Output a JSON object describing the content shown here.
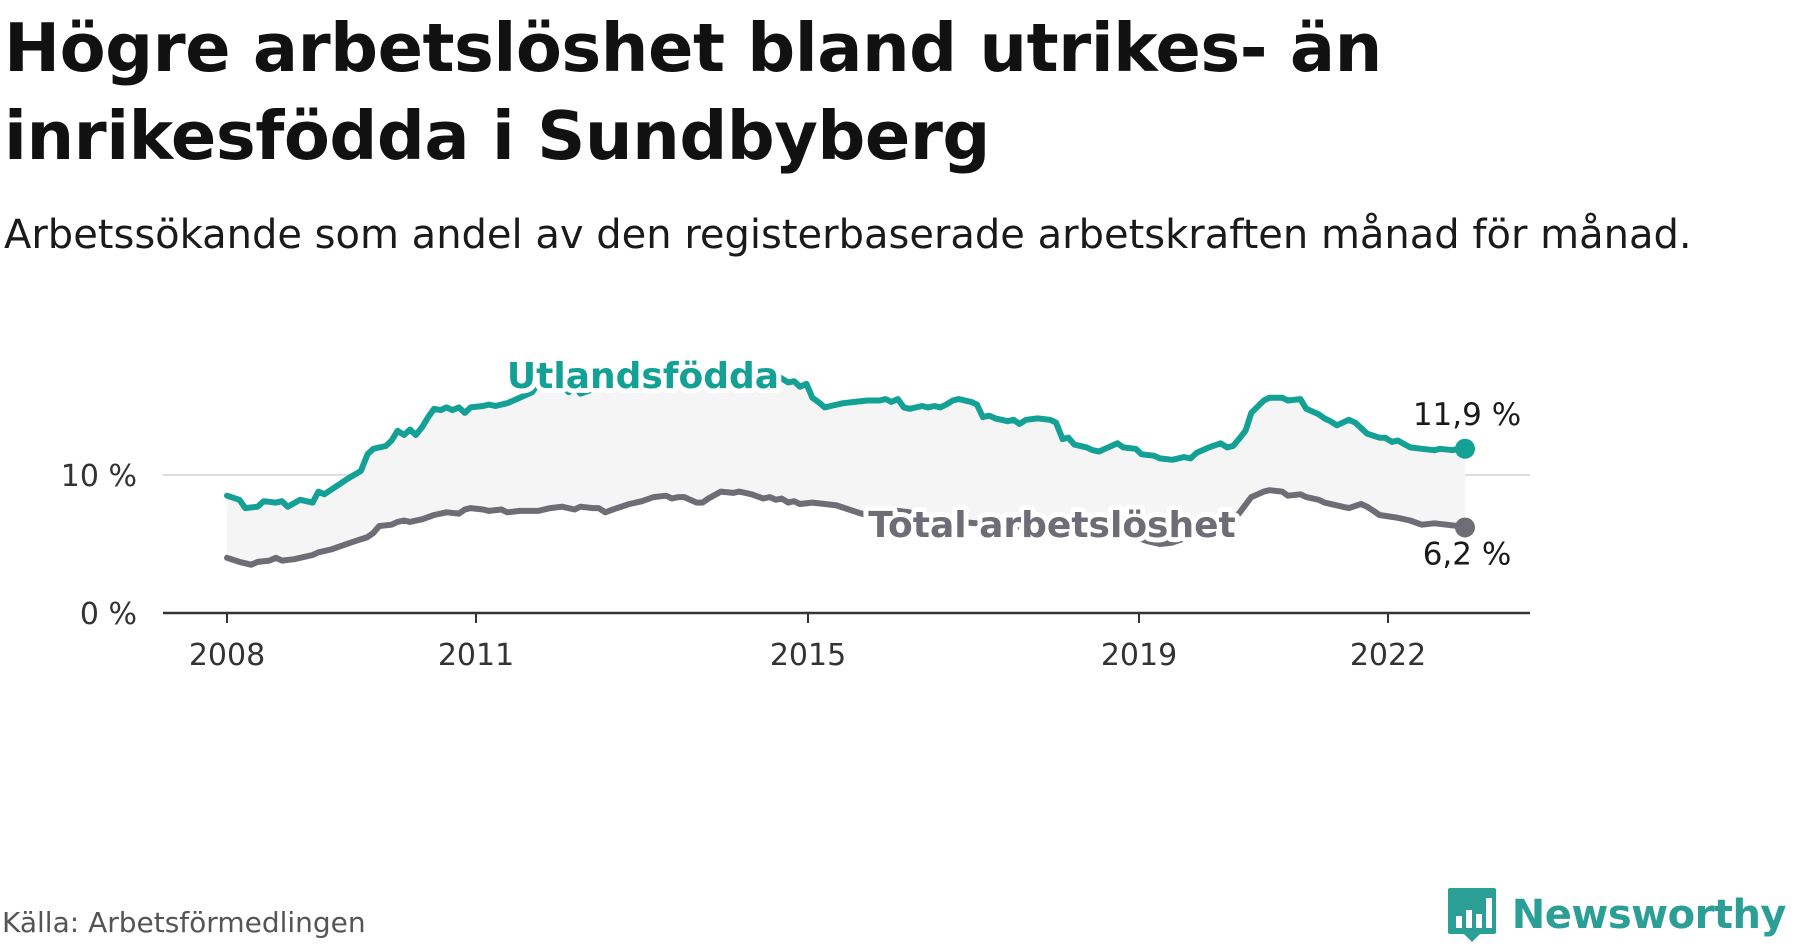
{
  "header": {
    "title": "Högre arbetslöshet bland utrikes- än inrikesfödda i Sundbyberg",
    "subtitle": "Arbetssökande som andel av den registerbaserade arbetskraften månad för månad."
  },
  "footer": {
    "source": "Källa: Arbetsförmedlingen",
    "brand": "Newsworthy",
    "brand_icon": "newsworthy-logo-icon"
  },
  "colors": {
    "foreign": "#14a195",
    "total": "#6e6c75",
    "band": "#f5f5f5",
    "grid": "#dddddd",
    "axis": "#333333"
  },
  "chart_data": {
    "type": "line",
    "title": "Högre arbetslöshet bland utrikes- än inrikesfödda i Sundbyberg",
    "subtitle": "Arbetssökande som andel av den registerbaserade arbetskraften månad för månad.",
    "xlabel": "",
    "ylabel": "",
    "xlim": [
      2008.0,
      2023.0
    ],
    "ylim": [
      0,
      20
    ],
    "y_ticks": [
      0,
      10,
      20
    ],
    "y_tick_labels": [
      "0 %",
      "10 %",
      "20 %"
    ],
    "x_ticks": [
      2008,
      2011,
      2015,
      2019,
      2022
    ],
    "x_tick_labels": [
      "2008",
      "2011",
      "2015",
      "2019",
      "2022"
    ],
    "grid": true,
    "legend": "inline",
    "series": [
      {
        "name": "Utlandsfödda",
        "color": "#14a195",
        "end_label": "11,9 %",
        "points": [
          [
            2008.0,
            8.5
          ],
          [
            2008.17,
            8.2
          ],
          [
            2008.25,
            7.6
          ],
          [
            2008.42,
            7.7
          ],
          [
            2008.5,
            8.1
          ],
          [
            2008.67,
            8.0
          ],
          [
            2008.75,
            8.1
          ],
          [
            2008.83,
            7.7
          ],
          [
            2009.0,
            8.2
          ],
          [
            2009.17,
            8.0
          ],
          [
            2009.25,
            8.8
          ],
          [
            2009.33,
            8.6
          ],
          [
            2009.5,
            9.2
          ],
          [
            2009.67,
            9.8
          ],
          [
            2009.83,
            10.3
          ],
          [
            2009.92,
            11.5
          ],
          [
            2010.0,
            11.9
          ],
          [
            2010.17,
            12.1
          ],
          [
            2010.25,
            12.5
          ],
          [
            2010.33,
            13.2
          ],
          [
            2010.42,
            12.9
          ],
          [
            2010.5,
            13.3
          ],
          [
            2010.58,
            12.9
          ],
          [
            2010.67,
            13.5
          ],
          [
            2010.75,
            14.2
          ],
          [
            2010.83,
            14.8
          ],
          [
            2010.92,
            14.7
          ],
          [
            2011.0,
            14.9
          ],
          [
            2011.08,
            14.7
          ],
          [
            2011.17,
            14.9
          ],
          [
            2011.25,
            14.5
          ],
          [
            2011.33,
            14.9
          ],
          [
            2011.5,
            15.0
          ],
          [
            2011.58,
            15.1
          ],
          [
            2011.67,
            15.0
          ],
          [
            2011.83,
            15.2
          ],
          [
            2012.0,
            15.6
          ],
          [
            2012.17,
            16.0
          ],
          [
            2012.25,
            16.6
          ],
          [
            2012.42,
            16.5
          ],
          [
            2012.58,
            16.4
          ],
          [
            2012.67,
            16.0
          ],
          [
            2012.75,
            16.4
          ],
          [
            2012.83,
            15.9
          ],
          [
            2013.0,
            16.2
          ],
          [
            2013.25,
            16.3
          ],
          [
            2013.5,
            16.4
          ],
          [
            2013.75,
            16.5
          ],
          [
            2014.0,
            16.7
          ],
          [
            2014.25,
            16.7
          ],
          [
            2014.5,
            16.9
          ],
          [
            2014.67,
            17.0
          ],
          [
            2014.83,
            16.6
          ],
          [
            2015.0,
            16.6
          ],
          [
            2015.17,
            16.9
          ],
          [
            2015.33,
            17.0
          ],
          [
            2015.5,
            17.2
          ],
          [
            2015.58,
            17.0
          ],
          [
            2015.67,
            16.7
          ],
          [
            2015.75,
            16.8
          ],
          [
            2015.83,
            16.4
          ],
          [
            2015.92,
            16.6
          ],
          [
            2016.0,
            15.6
          ],
          [
            2016.08,
            15.3
          ],
          [
            2016.17,
            14.9
          ],
          [
            2016.25,
            15.0
          ],
          [
            2016.42,
            15.2
          ],
          [
            2016.58,
            15.3
          ],
          [
            2016.75,
            15.4
          ],
          [
            2016.92,
            15.4
          ],
          [
            2017.0,
            15.5
          ],
          [
            2017.08,
            15.3
          ],
          [
            2017.17,
            15.5
          ],
          [
            2017.25,
            14.9
          ],
          [
            2017.33,
            14.8
          ],
          [
            2017.5,
            15.0
          ],
          [
            2017.58,
            14.9
          ],
          [
            2017.67,
            15.0
          ],
          [
            2017.75,
            14.9
          ],
          [
            2017.83,
            15.1
          ],
          [
            2017.92,
            15.4
          ],
          [
            2018.0,
            15.5
          ],
          [
            2018.17,
            15.3
          ],
          [
            2018.25,
            15.1
          ],
          [
            2018.33,
            14.2
          ],
          [
            2018.42,
            14.3
          ],
          [
            2018.5,
            14.1
          ],
          [
            2018.67,
            13.9
          ],
          [
            2018.75,
            14.0
          ],
          [
            2018.83,
            13.7
          ],
          [
            2018.92,
            14.0
          ],
          [
            2019.08,
            14.1
          ],
          [
            2019.25,
            14.0
          ],
          [
            2019.33,
            13.8
          ],
          [
            2019.42,
            12.6
          ],
          [
            2019.5,
            12.7
          ],
          [
            2019.58,
            12.2
          ],
          [
            2019.75,
            12.0
          ],
          [
            2019.83,
            11.8
          ],
          [
            2019.92,
            11.7
          ],
          [
            2020.0,
            11.9
          ],
          [
            2020.17,
            12.3
          ],
          [
            2020.25,
            12.0
          ],
          [
            2020.42,
            11.9
          ],
          [
            2020.5,
            11.5
          ],
          [
            2020.67,
            11.4
          ],
          [
            2020.75,
            11.2
          ],
          [
            2020.92,
            11.1
          ],
          [
            2021.0,
            11.2
          ],
          [
            2021.08,
            11.3
          ],
          [
            2021.17,
            11.2
          ],
          [
            2021.25,
            11.6
          ],
          [
            2021.42,
            12.0
          ],
          [
            2021.58,
            12.3
          ],
          [
            2021.67,
            12.0
          ],
          [
            2021.75,
            12.1
          ],
          [
            2021.83,
            12.6
          ],
          [
            2021.92,
            13.2
          ],
          [
            2022.0,
            14.5
          ],
          [
            2022.17,
            15.4
          ],
          [
            2022.25,
            15.6
          ],
          [
            2022.42,
            15.6
          ],
          [
            2022.5,
            15.4
          ],
          [
            2022.67,
            15.5
          ],
          [
            2022.75,
            14.8
          ],
          [
            2022.92,
            14.4
          ],
          [
            2023.0,
            14.1
          ],
          [
            2023.08,
            13.9
          ],
          [
            2023.17,
            13.6
          ],
          [
            2023.33,
            14.0
          ],
          [
            2023.42,
            13.8
          ],
          [
            2023.5,
            13.4
          ],
          [
            2023.58,
            13.0
          ],
          [
            2023.75,
            12.7
          ],
          [
            2023.83,
            12.7
          ],
          [
            2023.92,
            12.4
          ],
          [
            2024.0,
            12.5
          ],
          [
            2024.17,
            12.0
          ],
          [
            2024.33,
            11.9
          ],
          [
            2024.5,
            11.8
          ],
          [
            2024.58,
            11.9
          ],
          [
            2024.75,
            11.8
          ],
          [
            2024.83,
            11.9
          ],
          [
            2024.92,
            11.9
          ]
        ]
      },
      {
        "name": "Total arbetslöshet",
        "color": "#6e6c75",
        "end_label": "6,2 %",
        "points": [
          [
            2008.0,
            4.0
          ],
          [
            2008.17,
            3.7
          ],
          [
            2008.33,
            3.5
          ],
          [
            2008.42,
            3.7
          ],
          [
            2008.58,
            3.8
          ],
          [
            2008.67,
            4.0
          ],
          [
            2008.75,
            3.8
          ],
          [
            2008.92,
            3.9
          ],
          [
            2009.0,
            4.0
          ],
          [
            2009.17,
            4.2
          ],
          [
            2009.25,
            4.4
          ],
          [
            2009.42,
            4.6
          ],
          [
            2009.58,
            4.9
          ],
          [
            2009.75,
            5.2
          ],
          [
            2009.92,
            5.5
          ],
          [
            2010.0,
            5.8
          ],
          [
            2010.08,
            6.3
          ],
          [
            2010.25,
            6.4
          ],
          [
            2010.33,
            6.6
          ],
          [
            2010.42,
            6.7
          ],
          [
            2010.5,
            6.6
          ],
          [
            2010.67,
            6.8
          ],
          [
            2010.83,
            7.1
          ],
          [
            2010.92,
            7.2
          ],
          [
            2011.0,
            7.3
          ],
          [
            2011.17,
            7.2
          ],
          [
            2011.25,
            7.5
          ],
          [
            2011.33,
            7.6
          ],
          [
            2011.5,
            7.5
          ],
          [
            2011.58,
            7.4
          ],
          [
            2011.75,
            7.5
          ],
          [
            2011.83,
            7.3
          ],
          [
            2012.0,
            7.4
          ],
          [
            2012.25,
            7.4
          ],
          [
            2012.42,
            7.6
          ],
          [
            2012.58,
            7.7
          ],
          [
            2012.75,
            7.5
          ],
          [
            2012.83,
            7.7
          ],
          [
            2013.0,
            7.6
          ],
          [
            2013.08,
            7.6
          ],
          [
            2013.17,
            7.3
          ],
          [
            2013.33,
            7.6
          ],
          [
            2013.5,
            7.9
          ],
          [
            2013.67,
            8.1
          ],
          [
            2013.83,
            8.4
          ],
          [
            2014.0,
            8.5
          ],
          [
            2014.08,
            8.3
          ],
          [
            2014.17,
            8.4
          ],
          [
            2014.25,
            8.4
          ],
          [
            2014.33,
            8.2
          ],
          [
            2014.42,
            8.0
          ],
          [
            2014.5,
            8.0
          ],
          [
            2014.58,
            8.3
          ],
          [
            2014.75,
            8.8
          ],
          [
            2014.92,
            8.7
          ],
          [
            2015.0,
            8.8
          ],
          [
            2015.17,
            8.6
          ],
          [
            2015.33,
            8.3
          ],
          [
            2015.42,
            8.4
          ],
          [
            2015.5,
            8.2
          ],
          [
            2015.58,
            8.3
          ],
          [
            2015.67,
            8.0
          ],
          [
            2015.75,
            8.1
          ],
          [
            2015.83,
            7.9
          ],
          [
            2016.0,
            8.0
          ],
          [
            2016.17,
            7.9
          ],
          [
            2016.33,
            7.8
          ],
          [
            2016.5,
            7.5
          ],
          [
            2016.67,
            7.2
          ],
          [
            2016.83,
            7.0
          ],
          [
            2017.0,
            7.1
          ],
          [
            2017.17,
            7.4
          ],
          [
            2017.33,
            7.3
          ],
          [
            2017.5,
            7.0
          ],
          [
            2017.58,
            6.9
          ],
          [
            2017.75,
            6.8
          ],
          [
            2018.0,
            6.6
          ],
          [
            2018.5,
            6.4
          ],
          [
            2019.0,
            6.2
          ],
          [
            2019.5,
            6.0
          ],
          [
            2020.0,
            5.8
          ],
          [
            2020.42,
            5.5
          ],
          [
            2020.58,
            5.2
          ],
          [
            2020.75,
            5.0
          ],
          [
            2020.92,
            5.1
          ],
          [
            2021.08,
            5.4
          ],
          [
            2021.25,
            5.8
          ],
          [
            2021.42,
            6.0
          ],
          [
            2021.5,
            6.1
          ],
          [
            2021.67,
            6.4
          ],
          [
            2021.83,
            7.2
          ],
          [
            2022.0,
            8.4
          ],
          [
            2022.17,
            8.8
          ],
          [
            2022.25,
            8.9
          ],
          [
            2022.42,
            8.8
          ],
          [
            2022.5,
            8.5
          ],
          [
            2022.67,
            8.6
          ],
          [
            2022.75,
            8.4
          ],
          [
            2022.92,
            8.2
          ],
          [
            2023.0,
            8.0
          ],
          [
            2023.17,
            7.8
          ],
          [
            2023.33,
            7.6
          ],
          [
            2023.5,
            7.9
          ],
          [
            2023.58,
            7.7
          ],
          [
            2023.67,
            7.4
          ],
          [
            2023.75,
            7.1
          ],
          [
            2024.0,
            6.9
          ],
          [
            2024.17,
            6.7
          ],
          [
            2024.33,
            6.4
          ],
          [
            2024.5,
            6.5
          ],
          [
            2024.67,
            6.4
          ],
          [
            2024.83,
            6.3
          ],
          [
            2024.92,
            6.2
          ]
        ]
      }
    ]
  }
}
